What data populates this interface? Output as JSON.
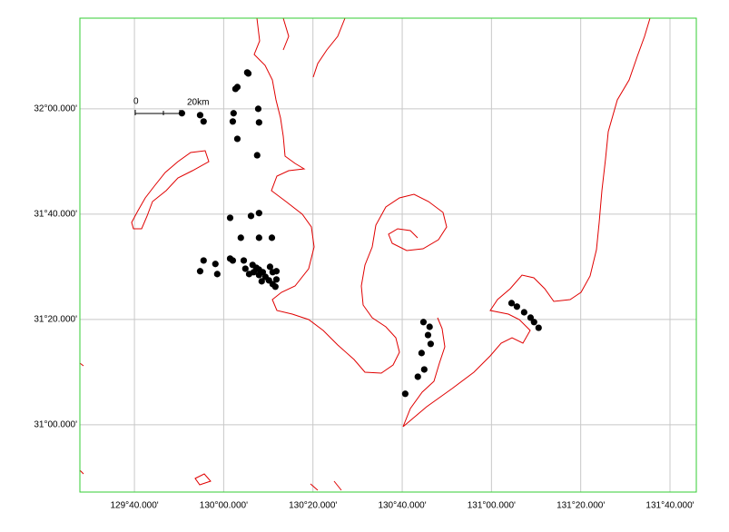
{
  "chart_data": {
    "type": "scatter",
    "xlim": [
      129.463,
      131.765
    ],
    "ylim": [
      30.787,
      32.287
    ],
    "xticks": [
      {
        "value": 129.6667,
        "label": "129°40.000'"
      },
      {
        "value": 130,
        "label": "130°00.000'"
      },
      {
        "value": 130.3333,
        "label": "130°20.000'"
      },
      {
        "value": 130.6667,
        "label": "130°40.000'"
      },
      {
        "value": 131,
        "label": "131°00.000'"
      },
      {
        "value": 131.3333,
        "label": "131°20.000'"
      },
      {
        "value": 131.6667,
        "label": "131°40.000'"
      }
    ],
    "yticks": [
      {
        "value": 31,
        "label": "31°00.000'"
      },
      {
        "value": 31.3333,
        "label": "31°20.000'"
      },
      {
        "value": 31.6667,
        "label": "31°40.000'"
      },
      {
        "value": 32,
        "label": "32°00.000'"
      }
    ],
    "grid": true,
    "color": "#000000",
    "frame_color": "#33cc33",
    "coast_color": "#e00000",
    "scale_bar": {
      "start_label": "0",
      "end_label": "20km"
    },
    "x": [
      130.088,
      130.092,
      130.051,
      130.044,
      129.844,
      129.912,
      129.925,
      130.037,
      130.129,
      130.034,
      130.132,
      130.051,
      130.125,
      130.024,
      130.102,
      130.132,
      130.064,
      130.132,
      130.18,
      129.925,
      129.969,
      129.912,
      129.976,
      130.024,
      130.034,
      130.075,
      130.108,
      130.122,
      130.132,
      130.146,
      130.173,
      130.183,
      130.197,
      130.081,
      130.095,
      130.112,
      130.132,
      130.142,
      130.156,
      130.169,
      130.183,
      130.193,
      130.197,
      130.746,
      130.769,
      130.763,
      130.773,
      130.739,
      130.749,
      130.725,
      130.678,
      131.075,
      131.095,
      131.122,
      131.146,
      131.159,
      131.176
    ],
    "y": [
      32.115,
      32.112,
      32.069,
      32.063,
      31.986,
      31.98,
      31.96,
      31.986,
      32.0,
      31.96,
      31.957,
      31.905,
      31.853,
      31.655,
      31.661,
      31.67,
      31.592,
      31.592,
      31.592,
      31.52,
      31.509,
      31.486,
      31.477,
      31.526,
      31.52,
      31.52,
      31.506,
      31.497,
      31.491,
      31.483,
      31.5,
      31.483,
      31.486,
      31.494,
      31.477,
      31.483,
      31.474,
      31.454,
      31.468,
      31.457,
      31.445,
      31.437,
      31.46,
      31.325,
      31.31,
      31.284,
      31.256,
      31.227,
      31.175,
      31.152,
      31.098,
      31.385,
      31.374,
      31.356,
      31.339,
      31.325,
      31.307
    ]
  }
}
